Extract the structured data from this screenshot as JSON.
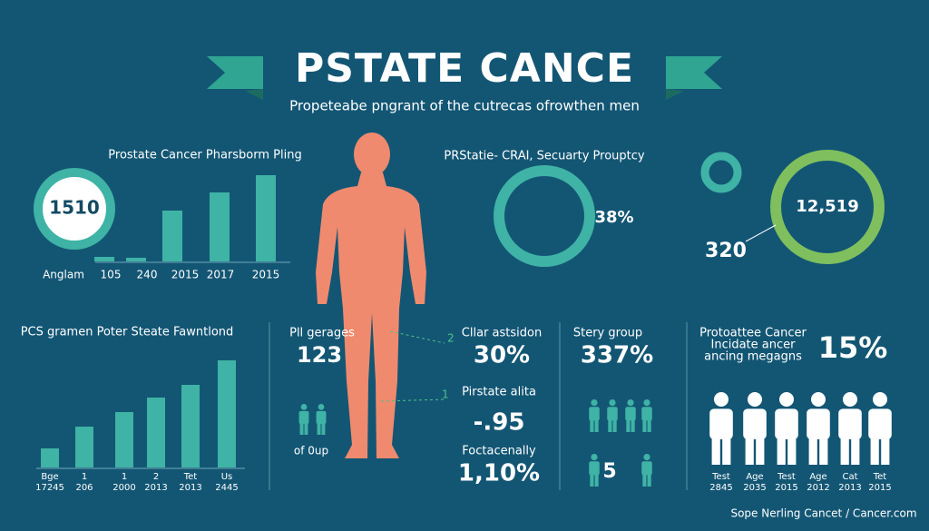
{
  "header": {
    "title": "PSTATE CANCE",
    "subtitle": "Propeteabe pngrant of the cutrecas ofrowthen men"
  },
  "panel_top_left": {
    "title": "Prostate Cancer Pharsborm Pling",
    "ring_value": "1510",
    "bars": [
      5,
      4,
      56,
      76,
      95
    ],
    "labels": [
      "Anglam",
      "105",
      "240",
      "2015",
      "2017",
      "2015"
    ]
  },
  "panel_top_middle": {
    "title": "PRStatie- CRAI, Secuarty Prouptcy",
    "value": "38%"
  },
  "panel_top_right": {
    "ring_value": "12,519",
    "side_value": "320"
  },
  "panel_bottom_left": {
    "title": "PCS gramen Poter Steate Fawntlond",
    "bars": [
      21,
      45,
      61,
      77,
      91,
      118
    ],
    "labels_top": [
      "Bge",
      "1",
      "1",
      "2",
      "Tet",
      "Us"
    ],
    "labels_bottom": [
      "17245",
      "206",
      "2000",
      "2013",
      "2013",
      "2445"
    ]
  },
  "body_callouts": [
    "2",
    "1"
  ],
  "column_1": {
    "label": "Pll gerages",
    "value": "123",
    "caption": "of 0up"
  },
  "column_2": {
    "label_1": "Cllar astsidon",
    "value_1": "30%",
    "label_2": "Pirstate alita",
    "value_2": "-.95",
    "label_3": "Foctacenally",
    "value_3": "1,10%"
  },
  "column_3": {
    "label": "Stery group",
    "value": "337%",
    "icon_number": "5"
  },
  "column_4": {
    "lines": [
      "Protoattee Cancer",
      "Incidate ancer",
      "ancing megagns"
    ],
    "value": "15%",
    "labels_top": [
      "Test",
      "Age",
      "Test",
      "Age",
      "Cat",
      "Tet"
    ],
    "labels_bottom": [
      "2845",
      "2035",
      "2015",
      "2012",
      "2013",
      "2015"
    ]
  },
  "footer": "Sope Nerling Cancet / Cancer.com"
}
